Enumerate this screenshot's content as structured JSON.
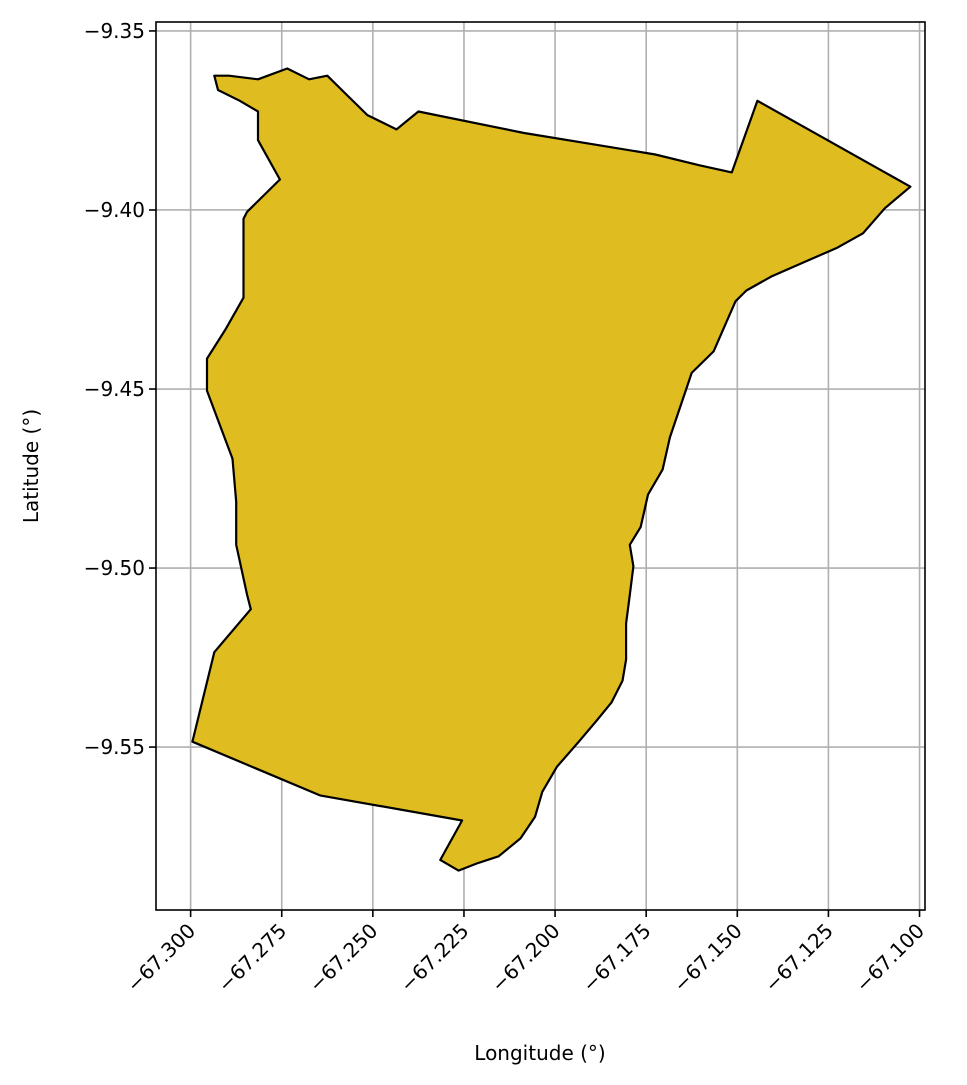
{
  "map": {
    "xlabel": "Longitude (°)",
    "ylabel": "Latitude (°)",
    "grid": true,
    "xlim": [
      -67.3095,
      -67.0985
    ],
    "ylim": [
      -9.5955,
      -9.3475
    ],
    "x_ticks": [
      -67.3,
      -67.275,
      -67.25,
      -67.225,
      -67.2,
      -67.175,
      -67.15,
      -67.125,
      -67.1
    ],
    "x_tick_labels": [
      "−67.300",
      "−67.275",
      "−67.250",
      "−67.225",
      "−67.200",
      "−67.175",
      "−67.150",
      "−67.125",
      "−67.100"
    ],
    "y_ticks": [
      -9.35,
      -9.4,
      -9.45,
      -9.5,
      -9.55
    ],
    "y_tick_labels": [
      "−9.35",
      "−9.40",
      "−9.45",
      "−9.50",
      "−9.55"
    ],
    "region": {
      "fill_color": "#dfbd21",
      "edge_color": "#000000",
      "boundary": [
        [
          -67.2995,
          -9.5485
        ],
        [
          -67.2935,
          -9.5235
        ],
        [
          -67.2835,
          -9.5115
        ],
        [
          -67.2845,
          -9.5075
        ],
        [
          -67.2875,
          -9.4935
        ],
        [
          -67.2875,
          -9.4815
        ],
        [
          -67.2885,
          -9.4695
        ],
        [
          -67.2955,
          -9.4505
        ],
        [
          -67.2955,
          -9.4415
        ],
        [
          -67.2905,
          -9.4335
        ],
        [
          -67.2855,
          -9.4245
        ],
        [
          -67.2855,
          -9.4025
        ],
        [
          -67.2845,
          -9.4005
        ],
        [
          -67.2755,
          -9.3915
        ],
        [
          -67.2815,
          -9.3805
        ],
        [
          -67.2815,
          -9.3725
        ],
        [
          -67.2865,
          -9.3695
        ],
        [
          -67.2925,
          -9.3665
        ],
        [
          -67.2935,
          -9.3625
        ],
        [
          -67.2895,
          -9.3625
        ],
        [
          -67.2815,
          -9.3635
        ],
        [
          -67.2735,
          -9.3605
        ],
        [
          -67.2675,
          -9.3635
        ],
        [
          -67.2625,
          -9.3625
        ],
        [
          -67.2575,
          -9.3675
        ],
        [
          -67.2515,
          -9.3735
        ],
        [
          -67.2435,
          -9.3775
        ],
        [
          -67.2375,
          -9.3725
        ],
        [
          -67.2085,
          -9.3785
        ],
        [
          -67.1845,
          -9.3825
        ],
        [
          -67.1725,
          -9.3845
        ],
        [
          -67.1605,
          -9.3875
        ],
        [
          -67.1515,
          -9.3895
        ],
        [
          -67.1445,
          -9.3695
        ],
        [
          -67.1025,
          -9.3935
        ],
        [
          -67.1095,
          -9.3995
        ],
        [
          -67.1155,
          -9.4065
        ],
        [
          -67.1225,
          -9.4105
        ],
        [
          -67.1315,
          -9.4145
        ],
        [
          -67.1405,
          -9.4185
        ],
        [
          -67.1475,
          -9.4225
        ],
        [
          -67.1505,
          -9.4255
        ],
        [
          -67.1535,
          -9.4325
        ],
        [
          -67.1565,
          -9.4395
        ],
        [
          -67.1625,
          -9.4455
        ],
        [
          -67.1655,
          -9.4545
        ],
        [
          -67.1685,
          -9.4635
        ],
        [
          -67.1705,
          -9.4725
        ],
        [
          -67.1745,
          -9.4795
        ],
        [
          -67.1765,
          -9.4885
        ],
        [
          -67.1795,
          -9.4935
        ],
        [
          -67.1785,
          -9.4995
        ],
        [
          -67.1795,
          -9.5075
        ],
        [
          -67.1805,
          -9.5155
        ],
        [
          -67.1805,
          -9.5255
        ],
        [
          -67.1815,
          -9.5315
        ],
        [
          -67.1845,
          -9.5375
        ],
        [
          -67.1885,
          -9.5425
        ],
        [
          -67.1935,
          -9.5485
        ],
        [
          -67.1995,
          -9.5555
        ],
        [
          -67.2035,
          -9.5625
        ],
        [
          -67.2055,
          -9.5695
        ],
        [
          -67.2095,
          -9.5755
        ],
        [
          -67.2155,
          -9.5805
        ],
        [
          -67.2215,
          -9.5825
        ],
        [
          -67.2265,
          -9.5845
        ],
        [
          -67.2315,
          -9.5815
        ],
        [
          -67.2255,
          -9.5705
        ],
        [
          -67.2645,
          -9.5635
        ]
      ]
    }
  }
}
